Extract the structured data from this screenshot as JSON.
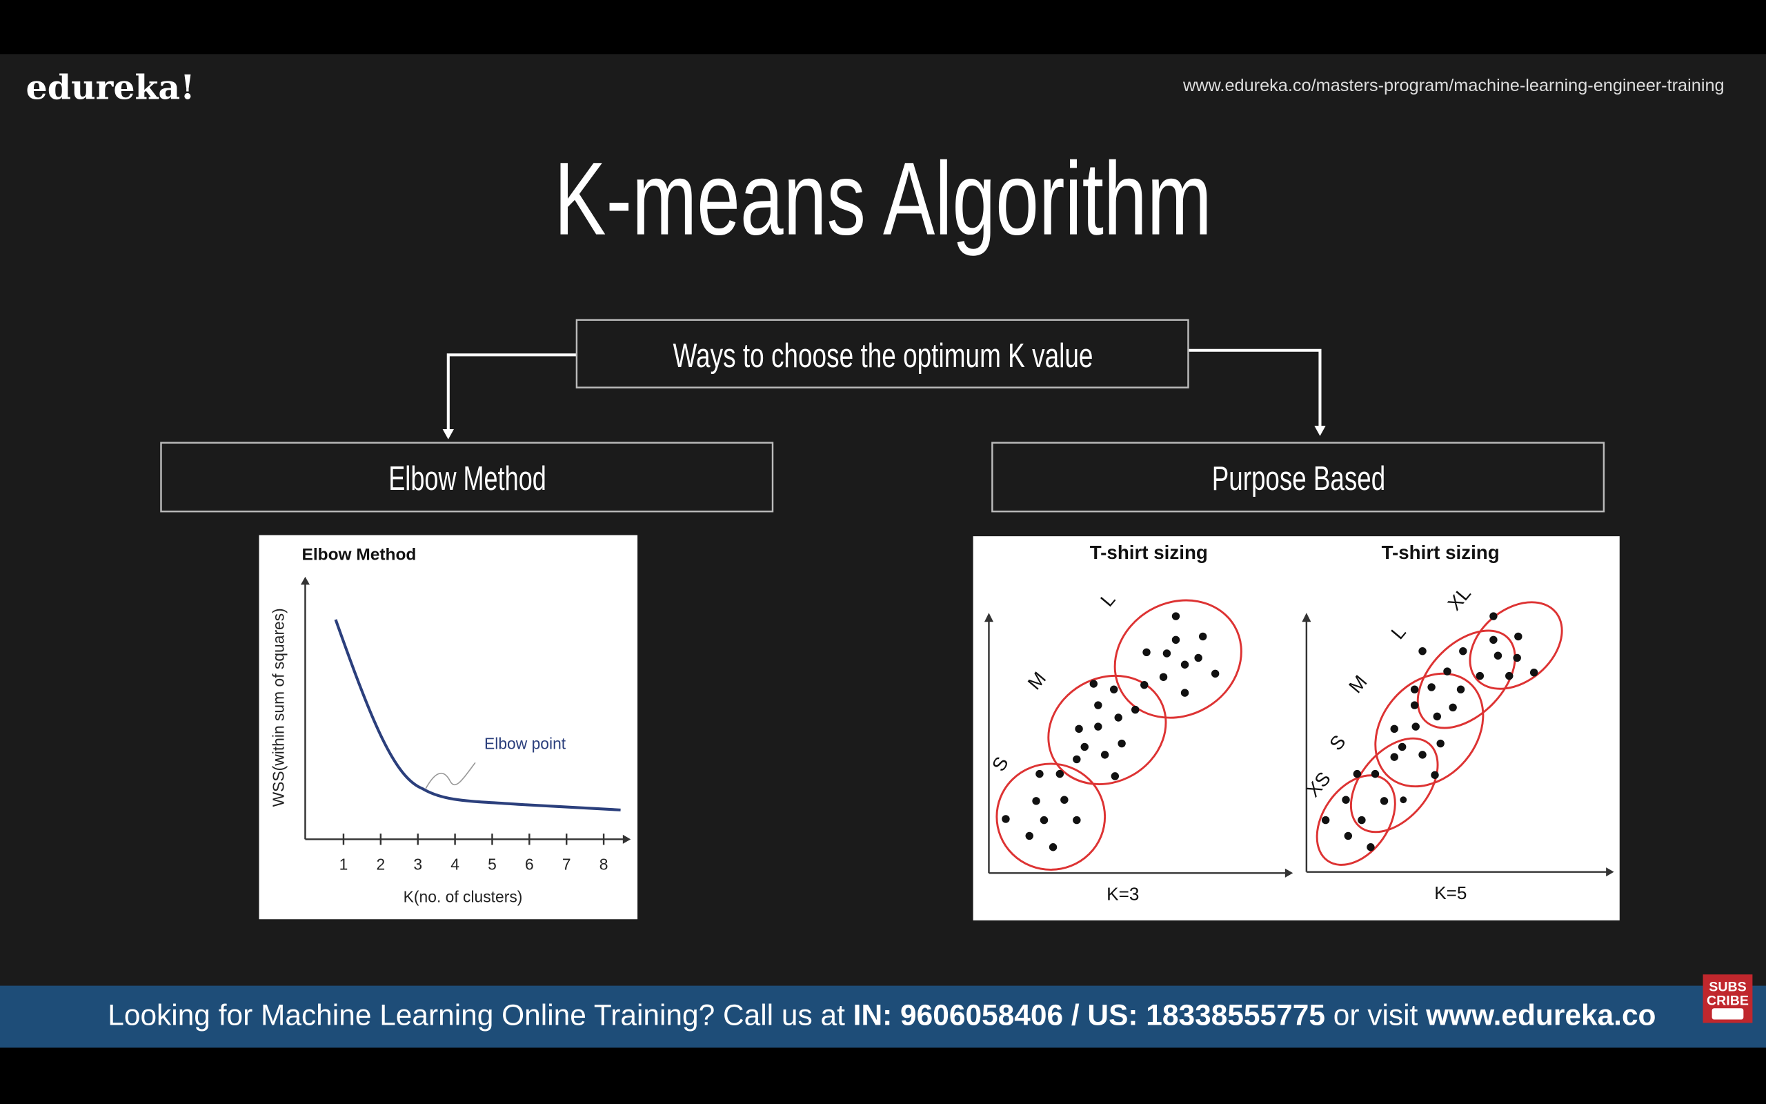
{
  "header": {
    "logo": "edureka!",
    "url": "www.edureka.co/masters-program/machine-learning-engineer-training"
  },
  "title": "K-means Algorithm",
  "root": {
    "label": "Ways to choose the optimum K value"
  },
  "branches": [
    {
      "label": "Elbow Method"
    },
    {
      "label": "Purpose Based"
    }
  ],
  "elbow_figure": {
    "title": "Elbow Method",
    "y_label": "WSS(within sum of squares)",
    "x_label": "K(no. of clusters)",
    "annotation": "Elbow point",
    "xticks": [
      1,
      2,
      3,
      4,
      5,
      6,
      7,
      8
    ]
  },
  "purpose_figure": {
    "panels": [
      {
        "title": "T-shirt sizing",
        "k_label": "K=3",
        "clusters": [
          "S",
          "M",
          "L"
        ]
      },
      {
        "title": "T-shirt sizing",
        "k_label": "K=5",
        "clusters": [
          "XS",
          "S",
          "M",
          "L",
          "XL"
        ]
      }
    ]
  },
  "banner": {
    "text_1": "Looking for Machine Learning Online Training? Call us at ",
    "phones": "IN: 9606058406 / US: 18338555775",
    "text_2": " or visit ",
    "site": "www.edureka.co"
  },
  "badge": {
    "line_1": "SUBS",
    "line_2": "CRIBE"
  }
}
